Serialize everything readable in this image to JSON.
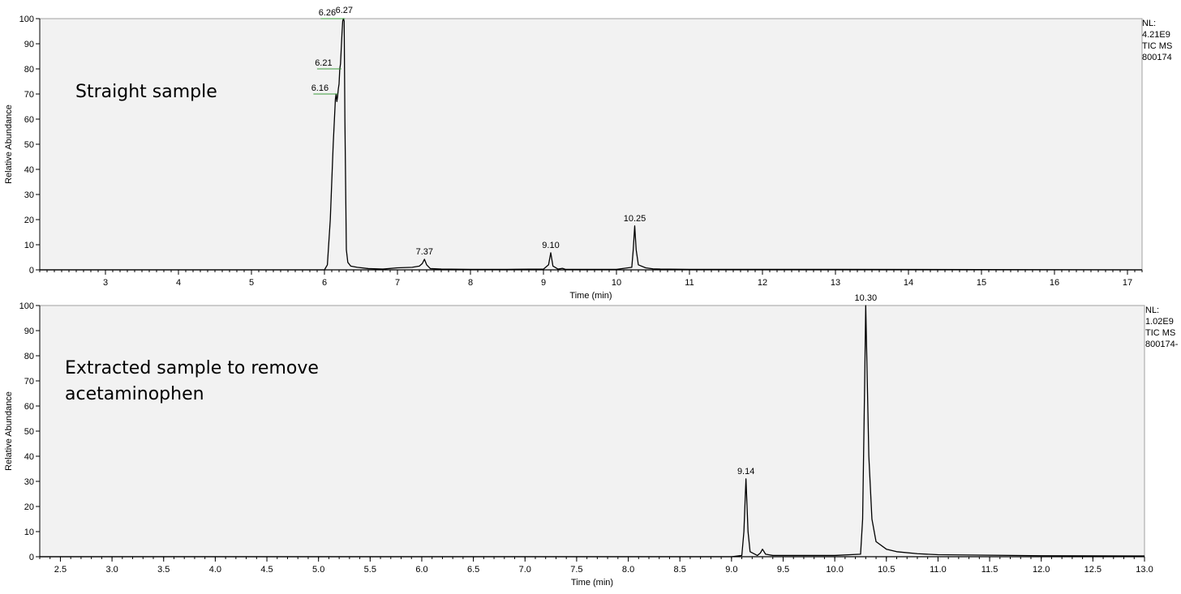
{
  "chart_data": [
    {
      "type": "line",
      "annotation_lines": [
        "Straight sample"
      ],
      "xlabel": "Time (min)",
      "ylabel": "Relative Abundance",
      "xlim": [
        2.1,
        17.2
      ],
      "ylim": [
        0,
        100
      ],
      "x_ticks": [
        3,
        4,
        5,
        6,
        7,
        8,
        9,
        10,
        11,
        12,
        13,
        14,
        15,
        16,
        17
      ],
      "x_tick_labels": [
        "3",
        "4",
        "5",
        "6",
        "7",
        "8",
        "9",
        "10",
        "11",
        "12",
        "13",
        "14",
        "15",
        "16",
        "17"
      ],
      "x_minor_step": 0.1,
      "y_ticks": [
        0,
        10,
        20,
        30,
        40,
        50,
        60,
        70,
        80,
        90,
        100
      ],
      "y_tick_labels": [
        "0",
        "10",
        "20",
        "30",
        "40",
        "50",
        "60",
        "70",
        "80",
        "90",
        "100"
      ],
      "info": [
        "NL:",
        "4.21E9",
        "TIC  MS",
        "800174"
      ],
      "x": [
        2.1,
        6.0,
        6.04,
        6.08,
        6.1,
        6.12,
        6.14,
        6.15,
        6.16,
        6.17,
        6.18,
        6.19,
        6.2,
        6.21,
        6.22,
        6.23,
        6.24,
        6.25,
        6.26,
        6.27,
        6.28,
        6.3,
        6.32,
        6.36,
        6.45,
        6.6,
        6.8,
        7.0,
        7.2,
        7.3,
        7.34,
        7.37,
        7.4,
        7.45,
        7.6,
        8.0,
        8.5,
        9.0,
        9.07,
        9.1,
        9.13,
        9.2,
        9.26,
        9.3,
        9.5,
        10.0,
        10.21,
        10.23,
        10.25,
        10.27,
        10.3,
        10.4,
        10.5,
        10.6,
        11.0,
        13.0,
        17.2
      ],
      "y": [
        0,
        0,
        2,
        20,
        35,
        50,
        62,
        68,
        70,
        67,
        69,
        72,
        74,
        80,
        82,
        88,
        94,
        99,
        100,
        99,
        60,
        8,
        3,
        1.5,
        1,
        0.5,
        0.3,
        0.8,
        1,
        1.5,
        2.5,
        4.2,
        2,
        0.5,
        0.3,
        0.2,
        0.2,
        0.3,
        2,
        6.8,
        1.5,
        0.3,
        0.6,
        0.2,
        0.2,
        0.2,
        1,
        8,
        17.5,
        8,
        2,
        0.8,
        0.4,
        0.3,
        0.2,
        0.2,
        0
      ],
      "peaks": [
        {
          "label": "6.26",
          "x": 6.26,
          "y": 100,
          "marker": true
        },
        {
          "label": "6.27",
          "x": 6.27,
          "y": 100,
          "marker": false
        },
        {
          "label": "6.21",
          "x": 6.21,
          "y": 80,
          "marker": true
        },
        {
          "label": "6.16",
          "x": 6.16,
          "y": 70,
          "marker": true
        },
        {
          "label": "7.37",
          "x": 7.37,
          "y": 4.2,
          "marker": false
        },
        {
          "label": "9.10",
          "x": 9.1,
          "y": 6.8,
          "marker": false
        },
        {
          "label": "10.25",
          "x": 10.25,
          "y": 17.5,
          "marker": false
        }
      ]
    },
    {
      "type": "line",
      "annotation_lines": [
        "Extracted sample to remove",
        "acetaminophen"
      ],
      "xlabel": "Time (min)",
      "ylabel": "Relative Abundance",
      "xlim": [
        2.3,
        13.0
      ],
      "ylim": [
        0,
        100
      ],
      "x_ticks": [
        2.5,
        3.0,
        3.5,
        4.0,
        4.5,
        5.0,
        5.5,
        6.0,
        6.5,
        7.0,
        7.5,
        8.0,
        8.5,
        9.0,
        9.5,
        10.0,
        10.5,
        11.0,
        11.5,
        12.0,
        12.5,
        13.0
      ],
      "x_tick_labels": [
        "2.5",
        "3.0",
        "3.5",
        "4.0",
        "4.5",
        "5.0",
        "5.5",
        "6.0",
        "6.5",
        "7.0",
        "7.5",
        "8.0",
        "8.5",
        "9.0",
        "9.5",
        "10.0",
        "10.5",
        "11.0",
        "11.5",
        "12.0",
        "12.5",
        "13.0"
      ],
      "x_minor_step": 0.1,
      "y_ticks": [
        0,
        10,
        20,
        30,
        40,
        50,
        60,
        70,
        80,
        90,
        100
      ],
      "y_tick_labels": [
        "0",
        "10",
        "20",
        "30",
        "40",
        "50",
        "60",
        "70",
        "80",
        "90",
        "100"
      ],
      "info": [
        "NL:",
        "1.02E9",
        "TIC  MS",
        "800174-"
      ],
      "x": [
        2.3,
        9.0,
        9.1,
        9.12,
        9.14,
        9.16,
        9.18,
        9.25,
        9.28,
        9.3,
        9.33,
        9.4,
        10.0,
        10.25,
        10.27,
        10.29,
        10.3,
        10.31,
        10.33,
        10.36,
        10.4,
        10.5,
        10.6,
        10.8,
        11.0,
        12.0,
        13.0
      ],
      "y": [
        0,
        0,
        0.5,
        10,
        31,
        10,
        2,
        0.5,
        1.5,
        3,
        1,
        0.5,
        0.5,
        1,
        15,
        70,
        100,
        80,
        40,
        15,
        6,
        3,
        2,
        1.2,
        0.8,
        0.4,
        0.3
      ],
      "peaks": [
        {
          "label": "9.14",
          "x": 9.14,
          "y": 31,
          "marker": false
        },
        {
          "label": "10.30",
          "x": 10.3,
          "y": 100,
          "marker": false
        }
      ]
    }
  ]
}
